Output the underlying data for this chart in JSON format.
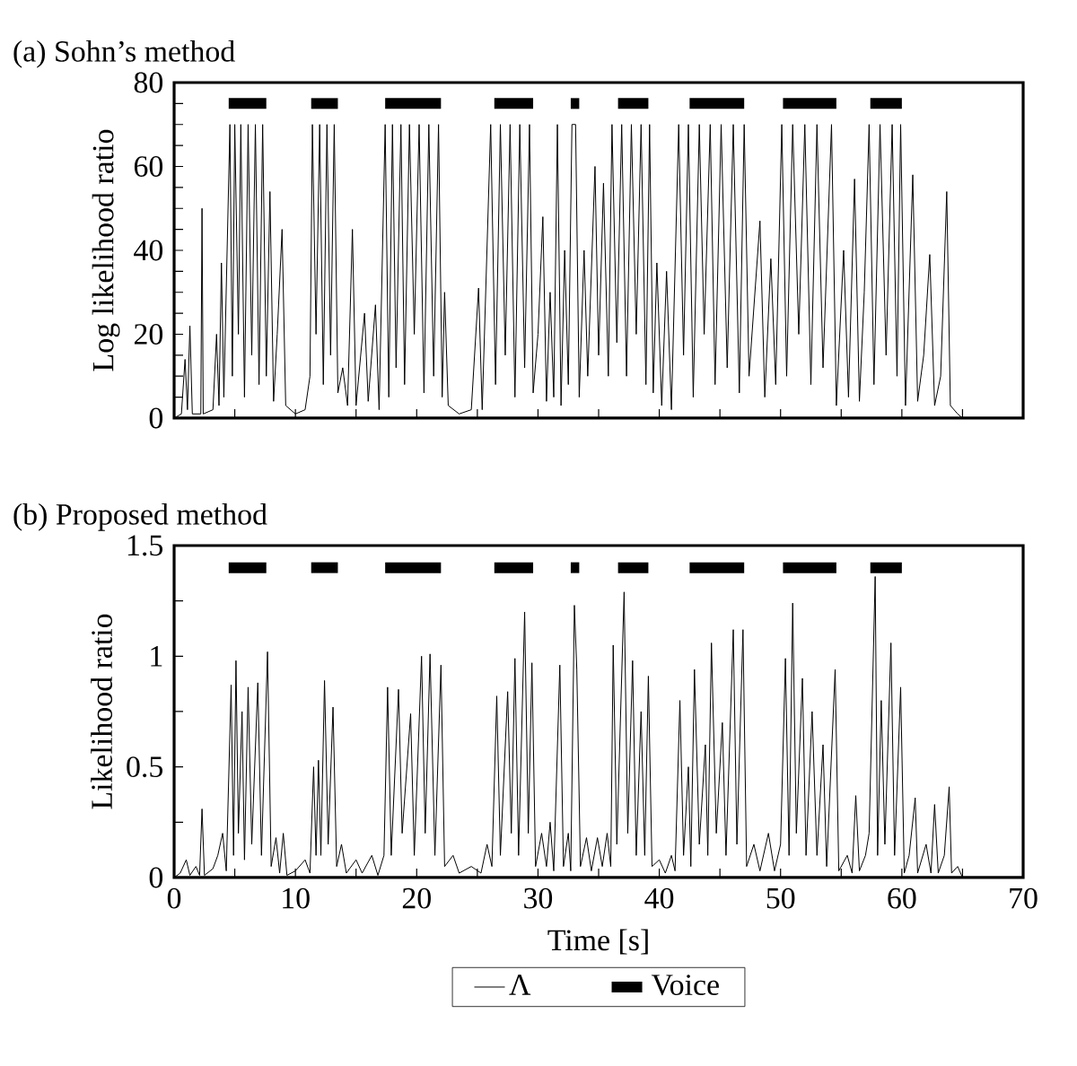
{
  "chart_data": [
    {
      "type": "line",
      "title": "(a) Sohn’s method",
      "ylabel": "Log likelihood ratio",
      "tick_labels": "y",
      "xlim": [
        0,
        70
      ],
      "ylim": [
        0,
        80
      ],
      "xticks": [
        0,
        {
          "value": 5,
          "label": null
        },
        10,
        {
          "value": 15,
          "label": null
        },
        20,
        {
          "value": 25,
          "label": null
        },
        30,
        {
          "value": 35,
          "label": null
        },
        40,
        {
          "value": 45,
          "label": null
        },
        50,
        {
          "value": 55,
          "label": null
        },
        60,
        {
          "value": 65,
          "label": null
        },
        70
      ],
      "yticks": [
        0,
        {
          "value": 5,
          "label": null
        },
        {
          "value": 10,
          "label": null
        },
        {
          "value": 15,
          "label": null
        },
        20,
        {
          "value": 25,
          "label": null
        },
        {
          "value": 30,
          "label": null
        },
        {
          "value": 35,
          "label": null
        },
        40,
        {
          "value": 45,
          "label": null
        },
        {
          "value": 50,
          "label": null
        },
        {
          "value": 55,
          "label": null
        },
        60,
        {
          "value": 65,
          "label": null
        },
        {
          "value": 70,
          "label": null
        },
        {
          "value": 75,
          "label": null
        },
        80
      ],
      "series": [
        {
          "color": "#000000",
          "x": [
            0,
            0.6,
            0.9,
            1.1,
            1.3,
            1.5,
            2.2,
            2.3,
            2.4,
            3.2,
            3.5,
            3.7,
            3.9,
            4.1,
            4.6,
            4.8,
            5.0,
            5.3,
            5.5,
            5.8,
            6.1,
            6.4,
            6.7,
            7.0,
            7.3,
            7.6,
            7.9,
            8.2,
            8.5,
            8.9,
            9.2,
            10.0,
            10.8,
            11.2,
            11.4,
            11.7,
            12.0,
            12.3,
            12.6,
            12.9,
            13.2,
            13.5,
            13.9,
            14.3,
            14.7,
            15.0,
            15.7,
            16.0,
            16.6,
            16.9,
            17.4,
            17.7,
            18.0,
            18.3,
            18.7,
            19.0,
            19.4,
            19.8,
            20.2,
            20.6,
            21.0,
            21.4,
            21.8,
            22.1,
            22.3,
            22.6,
            23.5,
            24.5,
            25.1,
            25.4,
            26.1,
            26.5,
            26.9,
            27.3,
            27.7,
            28.1,
            28.5,
            28.9,
            29.3,
            29.6,
            30.0,
            30.4,
            30.7,
            31.0,
            31.3,
            31.6,
            31.9,
            32.2,
            32.5,
            32.8,
            33.1,
            33.4,
            33.8,
            34.1,
            34.7,
            35.0,
            35.4,
            35.8,
            36.1,
            36.5,
            36.9,
            37.3,
            37.7,
            38.1,
            38.5,
            38.9,
            39.2,
            39.5,
            39.8,
            40.2,
            40.6,
            41.0,
            41.6,
            42.0,
            42.4,
            42.8,
            43.3,
            43.7,
            44.2,
            44.6,
            45.1,
            45.6,
            46.1,
            46.6,
            47.0,
            47.4,
            48.3,
            48.7,
            49.2,
            49.6,
            50.1,
            50.5,
            51.0,
            51.5,
            52.0,
            52.5,
            53.0,
            53.5,
            54.2,
            54.6,
            55.2,
            55.6,
            56.1,
            56.5,
            56.9,
            57.3,
            57.7,
            58.2,
            58.7,
            59.2,
            59.6,
            59.9,
            60.3,
            60.9,
            61.3,
            61.8,
            62.3,
            62.7,
            63.2,
            63.7,
            64.0,
            64.6,
            65,
            70
          ],
          "values": [
            0,
            1,
            14,
            2,
            22,
            1,
            1,
            50,
            1,
            2,
            20,
            3,
            37,
            5,
            70,
            10,
            70,
            20,
            70,
            5,
            70,
            15,
            70,
            8,
            70,
            10,
            54,
            4,
            20,
            45,
            3,
            1,
            2,
            10,
            70,
            20,
            70,
            8,
            70,
            15,
            70,
            6,
            12,
            3,
            45,
            3,
            25,
            4,
            27,
            2,
            70,
            5,
            70,
            12,
            70,
            8,
            70,
            20,
            70,
            6,
            70,
            10,
            70,
            5,
            30,
            3,
            1,
            2,
            31,
            2,
            70,
            8,
            70,
            15,
            70,
            5,
            70,
            12,
            70,
            6,
            20,
            48,
            4,
            30,
            5,
            70,
            3,
            40,
            8,
            70,
            70,
            5,
            40,
            10,
            60,
            15,
            56,
            10,
            70,
            18,
            70,
            10,
            70,
            20,
            70,
            8,
            70,
            6,
            37,
            3,
            35,
            2,
            70,
            15,
            70,
            5,
            70,
            20,
            70,
            8,
            70,
            12,
            70,
            6,
            70,
            10,
            47,
            5,
            38,
            8,
            70,
            10,
            70,
            20,
            70,
            8,
            70,
            12,
            70,
            3,
            40,
            5,
            57,
            4,
            30,
            70,
            8,
            70,
            15,
            70,
            10,
            70,
            3,
            58,
            4,
            15,
            39,
            3,
            10,
            54,
            3,
            1,
            0,
            0
          ]
        },
        {
          "color": "#000000",
          "x": [
            4.5,
            7.6
          ],
          "values": [
            75,
            75
          ]
        },
        {
          "color": "#000000",
          "x": [
            11.3,
            13.5
          ],
          "values": [
            75,
            75
          ]
        },
        {
          "color": "#000000",
          "x": [
            17.4,
            22.0
          ],
          "values": [
            75,
            75
          ]
        },
        {
          "color": "#000000",
          "x": [
            26.4,
            29.6
          ],
          "values": [
            75,
            75
          ]
        },
        {
          "color": "#000000",
          "x": [
            32.7,
            33.4
          ],
          "values": [
            75,
            75
          ]
        },
        {
          "color": "#000000",
          "x": [
            36.6,
            39.1
          ],
          "values": [
            75,
            75
          ]
        },
        {
          "color": "#000000",
          "x": [
            42.5,
            47.0
          ],
          "values": [
            75,
            75
          ]
        },
        {
          "color": "#000000",
          "x": [
            50.2,
            54.6
          ],
          "values": [
            75,
            75
          ]
        },
        {
          "color": "#000000",
          "x": [
            57.4,
            60.0
          ],
          "values": [
            75,
            75
          ]
        }
      ]
    },
    {
      "type": "line",
      "title": "(b) Proposed method",
      "xlabel": "Time [s]",
      "ylabel": "Likelihood ratio",
      "legend": "bottom",
      "xlim": [
        0,
        70
      ],
      "ylim": [
        0,
        1.5
      ],
      "xticks": [
        0,
        {
          "value": 5,
          "label": null
        },
        10,
        {
          "value": 15,
          "label": null
        },
        20,
        {
          "value": 25,
          "label": null
        },
        30,
        {
          "value": 35,
          "label": null
        },
        40,
        {
          "value": 45,
          "label": null
        },
        50,
        {
          "value": 55,
          "label": null
        },
        60,
        {
          "value": 65,
          "label": null
        },
        70
      ],
      "yticks": [
        0,
        {
          "value": 0.25,
          "label": null
        },
        0.5,
        {
          "value": 0.75,
          "label": null
        },
        1,
        {
          "value": 1.25,
          "label": null
        },
        1.5
      ],
      "series": [
        {
          "name": "Λ",
          "color": "#000000",
          "x": [
            0,
            0.5,
            1.0,
            1.3,
            1.8,
            2.1,
            2.3,
            2.5,
            3.2,
            3.6,
            4.0,
            4.3,
            4.7,
            4.9,
            5.1,
            5.3,
            5.6,
            5.8,
            6.1,
            6.4,
            6.9,
            7.2,
            7.7,
            8.0,
            8.4,
            8.7,
            9.0,
            9.3,
            10.0,
            10.8,
            11.2,
            11.5,
            11.7,
            11.9,
            12.1,
            12.4,
            12.7,
            13.1,
            13.4,
            13.8,
            14.2,
            15.0,
            15.5,
            16.3,
            16.8,
            17.3,
            17.6,
            17.9,
            18.5,
            18.8,
            19.5,
            19.8,
            20.4,
            20.7,
            21.1,
            21.5,
            22.0,
            22.3,
            23.0,
            23.5,
            24.5,
            25.3,
            25.8,
            26.2,
            26.6,
            26.9,
            27.5,
            27.8,
            28.1,
            28.4,
            28.9,
            29.2,
            29.5,
            29.8,
            30.3,
            30.7,
            31.0,
            31.3,
            31.8,
            32.1,
            32.5,
            32.7,
            33.0,
            33.2,
            33.5,
            34.0,
            34.4,
            34.9,
            35.3,
            35.7,
            36.0,
            36.2,
            36.5,
            37.1,
            37.4,
            37.8,
            38.1,
            38.5,
            38.8,
            39.1,
            39.4,
            40.0,
            40.5,
            41.0,
            41.3,
            41.7,
            42.0,
            42.4,
            42.6,
            42.9,
            43.3,
            43.8,
            44.0,
            44.3,
            44.7,
            45.2,
            45.5,
            46.1,
            46.4,
            46.9,
            47.2,
            47.8,
            48.3,
            49.0,
            49.5,
            50.0,
            50.4,
            50.7,
            51.0,
            51.3,
            51.8,
            52.1,
            52.6,
            53.0,
            53.5,
            53.8,
            54.5,
            54.8,
            55.5,
            55.9,
            56.2,
            56.5,
            57.0,
            57.3,
            57.8,
            58.0,
            58.3,
            58.6,
            59.1,
            59.4,
            59.9,
            60.2,
            60.6,
            61.1,
            61.3,
            62.0,
            62.4,
            62.7,
            63.0,
            63.5,
            63.9,
            64.1,
            64.6,
            65,
            70
          ],
          "values": [
            0,
            0.02,
            0.08,
            0.01,
            0.05,
            0.01,
            0.31,
            0.01,
            0.04,
            0.1,
            0.2,
            0.03,
            0.87,
            0.1,
            0.98,
            0.2,
            0.75,
            0.08,
            0.86,
            0.15,
            0.88,
            0.1,
            1.02,
            0.05,
            0.18,
            0.02,
            0.2,
            0.01,
            0.03,
            0.08,
            0.02,
            0.5,
            0.1,
            0.53,
            0.1,
            0.89,
            0.15,
            0.77,
            0.05,
            0.15,
            0.02,
            0.08,
            0.02,
            0.1,
            0.01,
            0.1,
            0.86,
            0.1,
            0.85,
            0.2,
            0.74,
            0.1,
            1.0,
            0.2,
            1.01,
            0.1,
            0.96,
            0.05,
            0.1,
            0.02,
            0.05,
            0.02,
            0.15,
            0.05,
            0.82,
            0.1,
            0.84,
            0.2,
            0.99,
            0.1,
            1.2,
            0.2,
            0.97,
            0.05,
            0.2,
            0.05,
            0.25,
            0.03,
            0.96,
            0.05,
            0.2,
            0.03,
            1.23,
            0.94,
            0.05,
            0.18,
            0.03,
            0.18,
            0.05,
            0.2,
            0.05,
            1.05,
            0.15,
            1.29,
            0.2,
            0.98,
            0.1,
            0.75,
            0.1,
            0.91,
            0.05,
            0.08,
            0.02,
            0.1,
            0.03,
            0.8,
            0.1,
            0.5,
            0.05,
            0.94,
            0.15,
            0.6,
            0.1,
            1.06,
            0.2,
            0.7,
            0.1,
            1.12,
            0.15,
            1.12,
            0.05,
            0.15,
            0.03,
            0.2,
            0.03,
            0.15,
            0.99,
            0.1,
            1.24,
            0.2,
            0.9,
            0.1,
            0.75,
            0.1,
            0.6,
            0.05,
            0.94,
            0.03,
            0.1,
            0.02,
            0.37,
            0.03,
            0.1,
            0.2,
            1.36,
            0.1,
            0.8,
            0.15,
            1.06,
            0.1,
            0.86,
            0.02,
            0.1,
            0.36,
            0.02,
            0.15,
            0.02,
            0.33,
            0.02,
            0.1,
            0.41,
            0.02,
            0.05,
            0,
            0
          ]
        },
        {
          "name": "Voice",
          "color": "#000000",
          "x": [
            4.5,
            7.6
          ],
          "values": [
            1.4,
            1.4
          ]
        },
        {
          "color": "#000000",
          "x": [
            11.3,
            13.5
          ],
          "values": [
            1.4,
            1.4
          ]
        },
        {
          "color": "#000000",
          "x": [
            17.4,
            22.0
          ],
          "values": [
            1.4,
            1.4
          ]
        },
        {
          "color": "#000000",
          "x": [
            26.4,
            29.6
          ],
          "values": [
            1.4,
            1.4
          ]
        },
        {
          "color": "#000000",
          "x": [
            32.7,
            33.4
          ],
          "values": [
            1.4,
            1.4
          ]
        },
        {
          "color": "#000000",
          "x": [
            36.6,
            39.1
          ],
          "values": [
            1.4,
            1.4
          ]
        },
        {
          "color": "#000000",
          "x": [
            42.5,
            47.0
          ],
          "values": [
            1.4,
            1.4
          ]
        },
        {
          "color": "#000000",
          "x": [
            50.2,
            54.6
          ],
          "values": [
            1.4,
            1.4
          ]
        },
        {
          "color": "#000000",
          "x": [
            57.4,
            60.0
          ],
          "values": [
            1.4,
            1.4
          ]
        }
      ]
    }
  ]
}
